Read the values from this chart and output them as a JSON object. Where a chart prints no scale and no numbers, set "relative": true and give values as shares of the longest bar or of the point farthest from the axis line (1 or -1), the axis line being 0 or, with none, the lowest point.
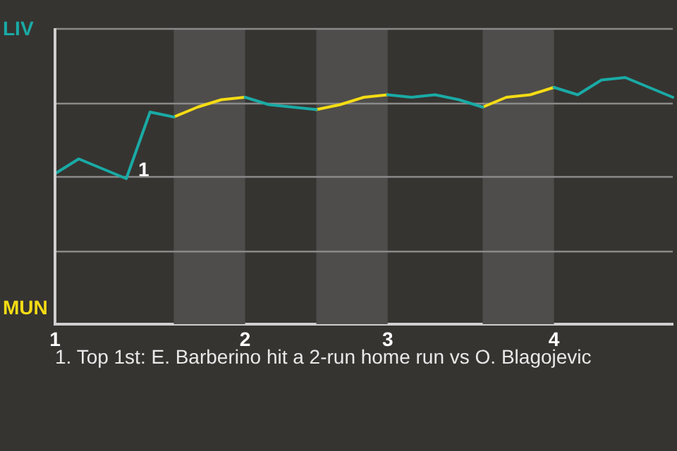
{
  "chart_data": {
    "type": "line",
    "relative": true,
    "categories": [
      "1",
      null,
      null,
      null,
      null,
      null,
      null,
      null,
      "2",
      null,
      null,
      null,
      null,
      null,
      "3",
      null,
      null,
      null,
      null,
      null,
      null,
      "4",
      null,
      null,
      null,
      null,
      null
    ],
    "series": [
      {
        "color": "#1aaaa5",
        "values": [
          0.61,
          0.67,
          0.63,
          0.59,
          0.86,
          0.84,
          null,
          null,
          0.92,
          0.89,
          0.88,
          0.87,
          null,
          null,
          0.93,
          0.92,
          0.93,
          0.91,
          0.88,
          null,
          null,
          0.96,
          0.93,
          0.99,
          1,
          0.96,
          0.92
        ]
      },
      {
        "color": "#f5dc14",
        "values": [
          null,
          null,
          null,
          null,
          null,
          0.84,
          0.88,
          0.91,
          0.92,
          null,
          null,
          0.87,
          0.89,
          0.92,
          0.93,
          null,
          null,
          null,
          0.88,
          0.92,
          0.93,
          0.96,
          null,
          null,
          null,
          null,
          null
        ]
      }
    ],
    "annotations": [
      "LIV",
      "MUN",
      "1",
      "1. Top 1st: E. Barberino hit a 2-run home run vs O. Blagojevic"
    ],
    "grid": "y",
    "legend": false,
    "marker": "none",
    "line_style": "solid"
  }
}
